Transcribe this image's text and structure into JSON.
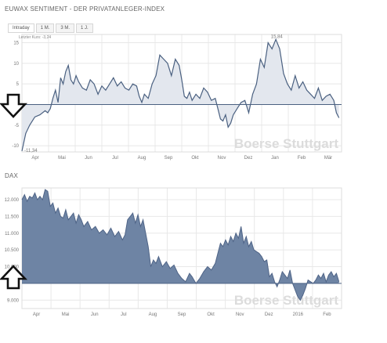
{
  "sentiment": {
    "title": "EUWAX SENTIMENT - DER PRIVATANLEGER-INDEX",
    "tabs": [
      {
        "label": "Intraday",
        "active": true
      },
      {
        "label": "1 M.",
        "active": false
      },
      {
        "label": "3 M.",
        "active": false
      },
      {
        "label": "1 J.",
        "active": false
      }
    ],
    "last_value_label": "Letzter Kurs: -3,24",
    "min_label": "-11,34",
    "max_label": "15,84"
  },
  "dax": {
    "title": "DAX"
  },
  "watermark": "Boerse Stuttgart",
  "colors": {
    "sentiment_line": "#4a6080",
    "sentiment_fill": "#e3e7ee",
    "dax_fill": "#6e84a4",
    "dax_line": "#4f6487",
    "grid": "#e8e8e8",
    "arrow": "#111111"
  },
  "icons": {
    "sentiment_arrow": "arrow-down-outline-icon",
    "dax_arrow": "arrow-up-outline-icon"
  },
  "chart_data": [
    {
      "type": "area",
      "title": "EUWAX SENTIMENT - DER PRIVATANLEGER-INDEX",
      "x_ticks": [
        "Apr",
        "Mai",
        "Jun",
        "Jul",
        "Aug",
        "Sep",
        "Okt",
        "Nov",
        "Dez",
        "Jan",
        "Feb",
        "Mär"
      ],
      "y_ticks": [
        "15",
        "10",
        "5",
        "0",
        "-5",
        "-10"
      ],
      "ylim": [
        -11.5,
        17
      ],
      "baseline": 0,
      "x_range": [
        0,
        12.4
      ],
      "grid": true,
      "series": [
        {
          "x": [
            0,
            0.15,
            0.3,
            0.5,
            0.7,
            0.9,
            1.0,
            1.1,
            1.2,
            1.3,
            1.4,
            1.5,
            1.6,
            1.7,
            1.8,
            1.9,
            2.0,
            2.1,
            2.2,
            2.35,
            2.5,
            2.65,
            2.8,
            2.95,
            3.1,
            3.25,
            3.4,
            3.55,
            3.7,
            3.85,
            4.0,
            4.15,
            4.3,
            4.45,
            4.55,
            4.65,
            4.75,
            4.9,
            5.05,
            5.2,
            5.35,
            5.5,
            5.65,
            5.8,
            5.95,
            6.1,
            6.2,
            6.3,
            6.4,
            6.5,
            6.6,
            6.75,
            6.9,
            7.05,
            7.2,
            7.35,
            7.5,
            7.6,
            7.7,
            7.8,
            7.9,
            8.0,
            8.1,
            8.2,
            8.35,
            8.5,
            8.65,
            8.8,
            8.95,
            9.1,
            9.25,
            9.4,
            9.55,
            9.7,
            9.85,
            10.0,
            10.15,
            10.3,
            10.45,
            10.6,
            10.75,
            10.9,
            11.05,
            11.2,
            11.35,
            11.5,
            11.65,
            11.8,
            11.95,
            12.1,
            12.2,
            12.3
          ],
          "y": [
            -11.3,
            -7,
            -5,
            -3,
            -2.5,
            -1.5,
            -2,
            -1,
            1.5,
            3.5,
            0.5,
            6.5,
            5,
            8,
            9.5,
            6,
            5,
            7,
            5.5,
            4,
            3.5,
            6,
            5,
            2.5,
            4.5,
            3.5,
            5,
            6.5,
            4.5,
            5.5,
            4,
            3.5,
            5,
            4.5,
            2,
            0.5,
            2.5,
            1.5,
            5,
            7,
            12,
            11,
            10,
            7,
            11,
            9.5,
            6,
            2,
            1.5,
            3,
            1,
            2.5,
            1.5,
            4,
            3,
            1,
            1.5,
            -1,
            -3.5,
            -4,
            -2.5,
            -5.5,
            -4.5,
            -2.5,
            -1,
            0.5,
            1,
            -2,
            2.5,
            5,
            11,
            9,
            15,
            13.5,
            15.8,
            13.5,
            7.5,
            5,
            3.5,
            7,
            4,
            5.5,
            3.5,
            2.5,
            1.5,
            4,
            1,
            2,
            2.5,
            1,
            -2,
            -3.24
          ]
        }
      ],
      "annotations": [
        "Letzter Kurs: -3,24",
        "-11,34",
        "15,84"
      ]
    },
    {
      "type": "area",
      "title": "DAX",
      "x_ticks": [
        "Apr",
        "Mai",
        "Jun",
        "Jul",
        "Aug",
        "Sep",
        "Okt",
        "Nov",
        "Dez",
        "2016",
        "Feb"
      ],
      "y_ticks": [
        "12.000",
        "11.500",
        "11.000",
        "10.500",
        "10.000",
        "9.500",
        "9.000"
      ],
      "ylim": [
        8.75,
        12.35
      ],
      "baseline": 9.5,
      "x_range": [
        0,
        12.4
      ],
      "grid": true,
      "series": [
        {
          "x": [
            0,
            0.1,
            0.2,
            0.3,
            0.4,
            0.5,
            0.6,
            0.7,
            0.8,
            0.9,
            1.0,
            1.1,
            1.2,
            1.3,
            1.4,
            1.5,
            1.6,
            1.7,
            1.8,
            1.9,
            2.0,
            2.1,
            2.2,
            2.3,
            2.4,
            2.55,
            2.7,
            2.85,
            3.0,
            3.15,
            3.3,
            3.45,
            3.6,
            3.75,
            3.9,
            4.0,
            4.1,
            4.2,
            4.3,
            4.4,
            4.5,
            4.6,
            4.7,
            4.8,
            4.9,
            5.0,
            5.1,
            5.2,
            5.3,
            5.45,
            5.6,
            5.75,
            5.9,
            6.05,
            6.2,
            6.35,
            6.5,
            6.6,
            6.75,
            6.9,
            7.05,
            7.2,
            7.35,
            7.5,
            7.6,
            7.7,
            7.8,
            7.9,
            8.0,
            8.1,
            8.2,
            8.3,
            8.4,
            8.5,
            8.6,
            8.7,
            8.8,
            8.9,
            9.0,
            9.1,
            9.2,
            9.3,
            9.4,
            9.5,
            9.6,
            9.7,
            9.8,
            9.9,
            10.0,
            10.1,
            10.2,
            10.3,
            10.4,
            10.5,
            10.6,
            10.7,
            10.8,
            10.9,
            11.0,
            11.1,
            11.2,
            11.3,
            11.4,
            11.5,
            11.6,
            11.7,
            11.8,
            11.9,
            12.0,
            12.1,
            12.2,
            12.3
          ],
          "y": [
            12.0,
            12.15,
            11.95,
            12.1,
            12.05,
            12.2,
            12.0,
            12.1,
            12.0,
            12.3,
            12.25,
            11.8,
            11.9,
            11.6,
            11.75,
            11.5,
            11.45,
            11.7,
            11.4,
            11.5,
            11.6,
            11.3,
            11.55,
            11.4,
            11.2,
            11.35,
            11.1,
            11.2,
            11.0,
            11.1,
            10.95,
            11.15,
            10.9,
            11.05,
            10.8,
            10.95,
            11.4,
            11.5,
            11.6,
            11.3,
            11.55,
            11.2,
            11.4,
            11.0,
            10.6,
            10.0,
            10.2,
            10.1,
            10.3,
            10.0,
            10.15,
            9.95,
            10.05,
            9.8,
            9.65,
            9.55,
            9.8,
            9.7,
            9.5,
            9.65,
            9.85,
            10.0,
            9.9,
            10.1,
            10.4,
            10.7,
            10.6,
            10.8,
            10.65,
            10.9,
            10.75,
            11.0,
            10.85,
            11.2,
            10.7,
            10.9,
            10.6,
            10.75,
            10.5,
            10.45,
            10.4,
            10.3,
            10.15,
            10.2,
            9.7,
            9.8,
            9.55,
            9.4,
            9.6,
            9.85,
            9.75,
            9.65,
            9.9,
            9.5,
            9.3,
            9.1,
            9.0,
            9.15,
            9.35,
            9.6,
            9.55,
            9.5,
            9.6,
            9.75,
            9.65,
            9.8,
            9.55,
            9.75,
            9.85,
            9.7,
            9.8,
            9.55
          ]
        }
      ]
    }
  ]
}
